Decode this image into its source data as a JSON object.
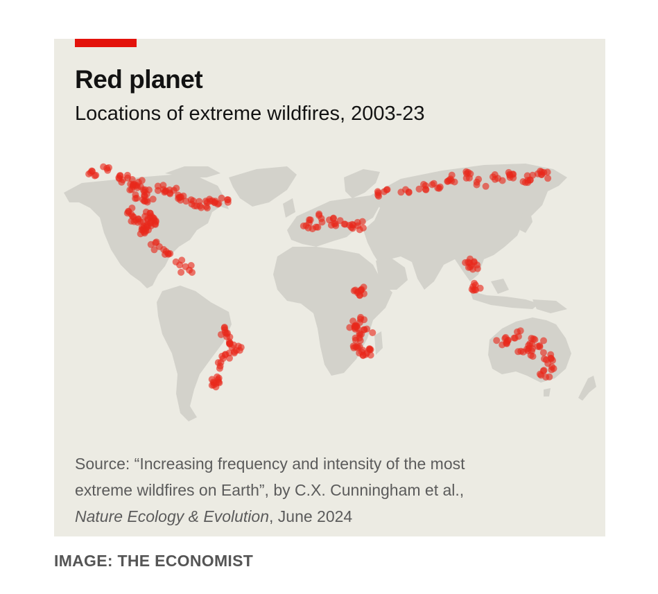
{
  "chart": {
    "title": "Red planet",
    "subtitle": "Locations of extreme wildfires, 2003-23",
    "source_line1": "Source: “Increasing frequency and intensity of the most",
    "source_line2": "extreme wildfires on Earth”, by C.X. Cunningham et al.,",
    "source_journal": "Nature Ecology & Evolution",
    "source_date": ", June 2024",
    "accent_color": "#e3120b",
    "fire_color": "#e8291c",
    "land_color": "#d3d2cb",
    "background_color": "#ecebe3"
  },
  "credit": "IMAGE: THE ECONOMIST",
  "chart_data": {
    "type": "scatter",
    "title": "Red planet",
    "subtitle": "Locations of extreme wildfires, 2003-23",
    "x_unit": "longitude",
    "y_unit": "latitude",
    "clusters": [
      {
        "region": "Western Canada & Alaska",
        "x": [
          -150,
          -140,
          -130,
          -122,
          -115,
          -105,
          -98,
          -120,
          -118,
          -112
        ],
        "y": [
          64,
          66,
          62,
          58,
          56,
          57,
          55,
          60,
          52,
          50
        ]
      },
      {
        "region": "Western United States",
        "x": [
          -123,
          -121,
          -119,
          -117,
          -115,
          -113,
          -111,
          -108
        ],
        "y": [
          45,
          42,
          40,
          38,
          36,
          43,
          41,
          39
        ]
      },
      {
        "region": "Eastern Canada",
        "x": [
          -90,
          -82,
          -76,
          -70,
          -64
        ],
        "y": [
          52,
          50,
          49,
          50,
          51
        ]
      },
      {
        "region": "Mexico & Central America",
        "x": [
          -108,
          -100,
          -92,
          -88
        ],
        "y": [
          28,
          24,
          19,
          16
        ]
      },
      {
        "region": "South America",
        "x": [
          -64,
          -60,
          -57,
          -55,
          -62,
          -66,
          -70,
          -71
        ],
        "y": [
          -15,
          -18,
          -22,
          -25,
          -28,
          -33,
          -40,
          -43
        ]
      },
      {
        "region": "Mediterranean",
        "x": [
          -8,
          -5,
          2,
          8,
          15,
          22,
          25
        ],
        "y": [
          40,
          38,
          42,
          40,
          40,
          38,
          39
        ]
      },
      {
        "region": "Southern Africa",
        "x": [
          20,
          24,
          28,
          31,
          25,
          22,
          28,
          30
        ],
        "y": [
          -12,
          -14,
          -10,
          -14,
          -18,
          -22,
          -25,
          -26
        ]
      },
      {
        "region": "Central Africa",
        "x": [
          25,
          27
        ],
        "y": [
          4,
          5
        ]
      },
      {
        "region": "Russia & Siberia",
        "x": [
          40,
          55,
          65,
          75,
          85,
          95,
          105,
          115,
          125,
          135,
          145
        ],
        "y": [
          55,
          56,
          57,
          58,
          62,
          64,
          60,
          62,
          63,
          62,
          64
        ]
      },
      {
        "region": "Southeast Asia",
        "x": [
          97,
          99,
          101
        ],
        "y": [
          20,
          18,
          7
        ]
      },
      {
        "region": "Australia",
        "x": [
          118,
          124,
          130,
          136,
          142,
          148,
          150,
          146,
          140,
          132
        ],
        "y": [
          -20,
          -18,
          -17,
          -20,
          -21,
          -28,
          -33,
          -37,
          -26,
          -24
        ]
      }
    ]
  }
}
